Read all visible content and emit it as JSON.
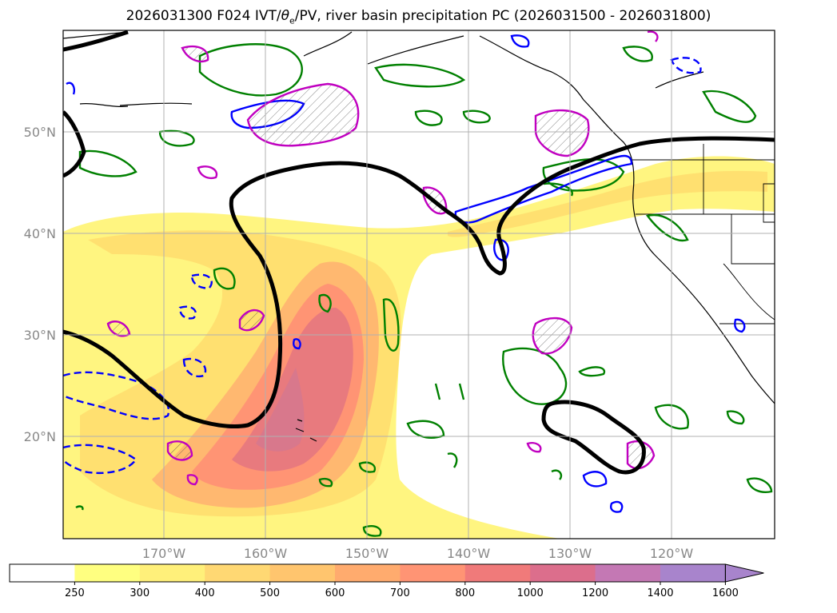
{
  "title_pre": "2026031300 F024 IVT/",
  "title_theta": "θ",
  "title_sub": "e",
  "title_post": "/PV, river basin precipitation PC (2026031500 - 2026031800)",
  "lat_labels": [
    "50°N",
    "40°N",
    "30°N",
    "20°N"
  ],
  "lon_labels": [
    "170°W",
    "160°W",
    "150°W",
    "140°W",
    "130°W",
    "120°W"
  ],
  "colorbar": {
    "ticks": [
      "250",
      "300",
      "400",
      "500",
      "600",
      "700",
      "800",
      "1000",
      "1200",
      "1400",
      "1600"
    ],
    "colors": [
      "#ffffff",
      "#ffff80",
      "#fff07a",
      "#ffd873",
      "#ffc56e",
      "#ffab6e",
      "#ff9474",
      "#f07a7a",
      "#dc6e8c",
      "#c478b4",
      "#a884cc"
    ],
    "extend": "max"
  },
  "contour_colors": {
    "ivt_shading": "#fff06a",
    "pv_black": "#000000",
    "green": "#008000",
    "blue": "#0000ff",
    "magenta": "#c000c0"
  }
}
